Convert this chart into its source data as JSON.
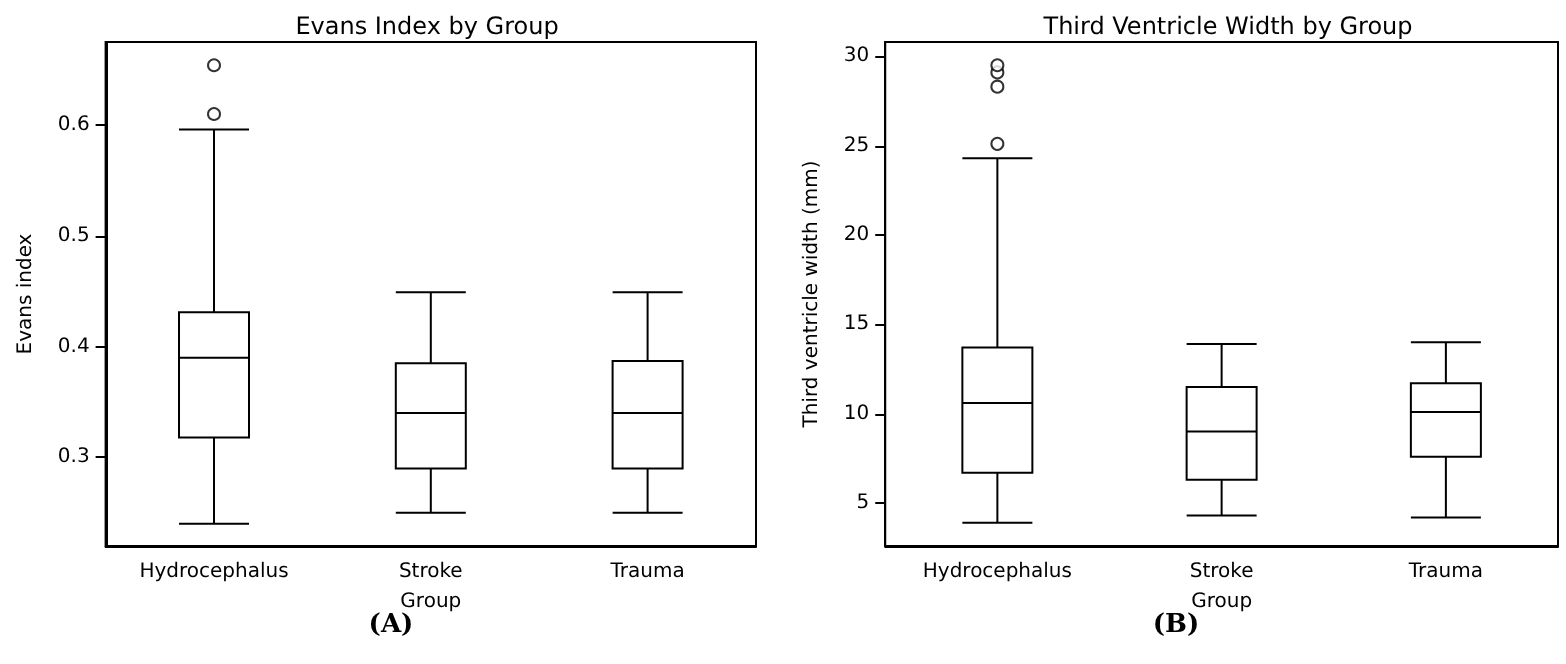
{
  "chart_data": [
    {
      "type": "box",
      "title": "Evans Index by Group",
      "xlabel": "Group",
      "ylabel": "Evans index",
      "categories": [
        "Hydrocephalus",
        "Stroke",
        "Trauma"
      ],
      "boxes": [
        {
          "low": 0.24,
          "q1": 0.318,
          "median": 0.39,
          "q3": 0.431,
          "high": 0.596,
          "outliers": [
            0.61,
            0.654
          ]
        },
        {
          "low": 0.25,
          "q1": 0.29,
          "median": 0.34,
          "q3": 0.385,
          "high": 0.449
        },
        {
          "low": 0.25,
          "q1": 0.29,
          "median": 0.34,
          "q3": 0.387,
          "high": 0.449
        }
      ],
      "ylim": [
        0.22,
        0.675
      ],
      "yticks": [
        0.3,
        0.4,
        0.5,
        0.6
      ],
      "grid": false,
      "annotations": [
        "(A)"
      ]
    },
    {
      "type": "box",
      "title": "Third Ventricle Width by Group",
      "xlabel": "Group",
      "ylabel": "Third ventricle width (mm)",
      "categories": [
        "Hydrocephalus",
        "Stroke",
        "Trauma"
      ],
      "boxes": [
        {
          "low": 3.9,
          "q1": 6.7,
          "median": 10.6,
          "q3": 13.7,
          "high": 24.3,
          "outliers": [
            25.1,
            28.3,
            29.1,
            29.5
          ]
        },
        {
          "low": 4.3,
          "q1": 6.3,
          "median": 9.0,
          "q3": 11.5,
          "high": 13.9
        },
        {
          "low": 4.2,
          "q1": 7.6,
          "median": 10.1,
          "q3": 11.7,
          "high": 14.0
        }
      ],
      "ylim": [
        2.6,
        30.8
      ],
      "yticks": [
        5,
        10,
        15,
        20,
        25,
        30
      ],
      "grid": false,
      "annotations": [
        "(B)"
      ]
    }
  ]
}
